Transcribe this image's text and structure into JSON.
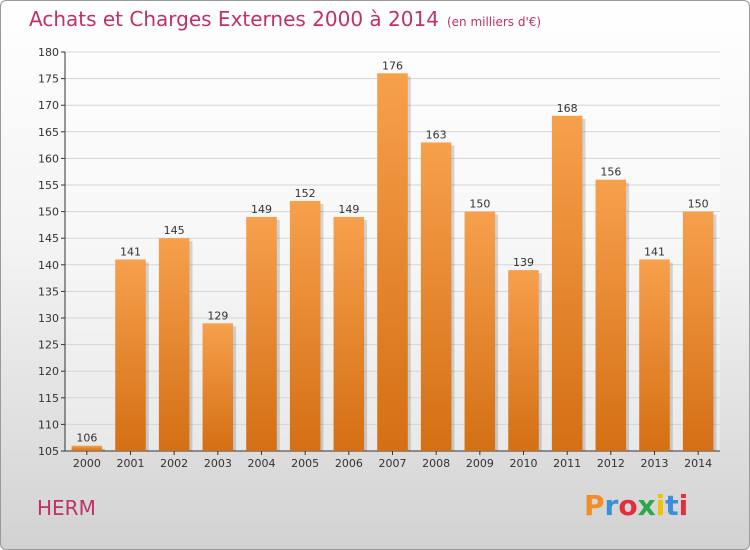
{
  "title": "Achats et Charges Externes 2000 à 2014",
  "subtitle": "(en milliers d'€)",
  "location": "HERM",
  "logo_text": "Proxiti",
  "logo_colors": [
    "#f28c28",
    "#3a8fd6",
    "#e0303f",
    "#2aa84a",
    "#f2c200",
    "#3a8fd6",
    "#e0303f"
  ],
  "colors": {
    "title": "#c0306a",
    "bar_top": "#f7a04c",
    "bar_bottom": "#d46f14",
    "grid": "#d5d5d5",
    "axis": "#333333"
  },
  "chart_data": {
    "type": "bar",
    "title": "Achats et Charges Externes 2000 à 2014",
    "subtitle": "(en milliers d'€)",
    "categories": [
      "2000",
      "2001",
      "2002",
      "2003",
      "2004",
      "2005",
      "2006",
      "2007",
      "2008",
      "2009",
      "2010",
      "2011",
      "2012",
      "2013",
      "2014"
    ],
    "values": [
      106,
      141,
      145,
      129,
      149,
      152,
      149,
      176,
      163,
      150,
      139,
      168,
      156,
      141,
      150
    ],
    "ylim": [
      105,
      180
    ],
    "yticks": [
      105,
      110,
      115,
      120,
      125,
      130,
      135,
      140,
      145,
      150,
      155,
      160,
      165,
      170,
      175,
      180
    ],
    "grid": true,
    "xlabel": "",
    "ylabel": ""
  }
}
